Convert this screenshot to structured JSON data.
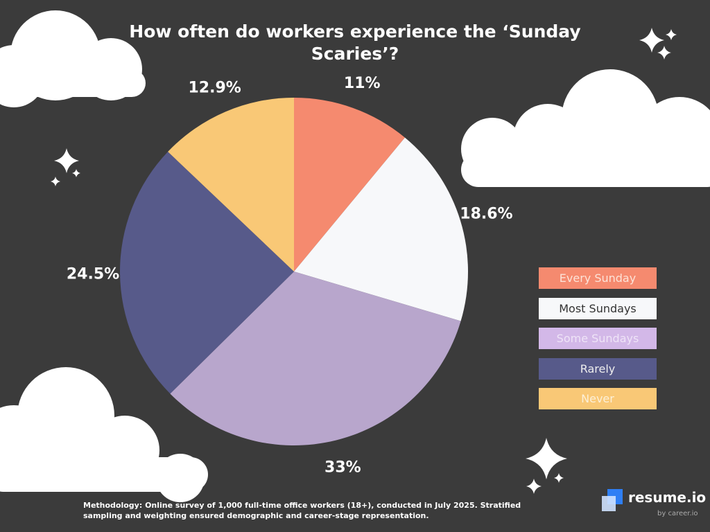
{
  "chart_data": {
    "type": "pie",
    "title": "How often do workers experience the ‘Sunday Scaries’?",
    "start": "top",
    "direction": "clockwise",
    "legend_placement": "right",
    "slices": [
      {
        "label": "Every Sunday",
        "value": 11,
        "display": "11%",
        "color": "#f58a6f",
        "text_color": "#fde3d8"
      },
      {
        "label": "Most Sundays",
        "value": 18.6,
        "display": "18.6%",
        "color": "#f7f8fa",
        "text_color": "#333333"
      },
      {
        "label": "Some Sundays",
        "value": 33,
        "display": "33%",
        "color": "#b8a6cc",
        "legend_color": "#d3b8e8",
        "text_color": "#efe4f7"
      },
      {
        "label": "Rarely",
        "value": 24.5,
        "display": "24.5%",
        "color": "#575a8a",
        "text_color": "#eeeeee"
      },
      {
        "label": "Never",
        "value": 12.9,
        "display": "12.9%",
        "color": "#f9c876",
        "text_color": "#fdf0d8"
      }
    ]
  },
  "footer": {
    "methodology": "Methodology: Online survey of 1,000 full-time office workers (18+), conducted in July 2025. Stratified sampling and weighting ensured demographic and career-stage representation.",
    "brand": "resume.io",
    "byline": "by career.io"
  },
  "colors": {
    "background": "#3b3b3b",
    "clouds": "#ffffff",
    "logo_blue": "#2f7ff5"
  }
}
